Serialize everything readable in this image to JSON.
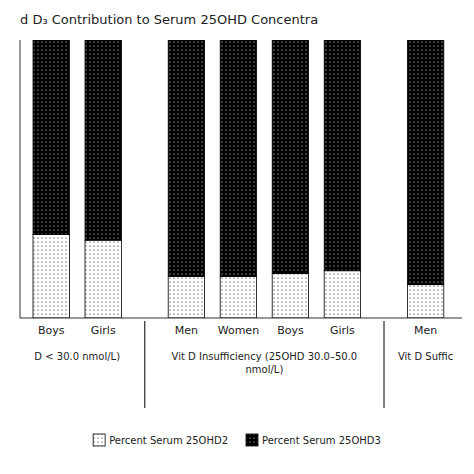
{
  "chart_data": {
    "type": "bar",
    "stacked": true,
    "title": "d D₃ Contribution to Serum 25OHD Concentra",
    "categories": [
      "Boys",
      "Girls",
      "Men",
      "Women",
      "Boys",
      "Girls",
      "Men"
    ],
    "series": [
      {
        "name": "Percent Serum 25OHD2",
        "color": "#ffffff",
        "values": [
          30,
          28,
          15,
          15,
          16,
          17,
          12
        ]
      },
      {
        "name": "Percent Serum 25OHD3",
        "color": "#000000",
        "values": [
          70,
          72,
          85,
          85,
          84,
          83,
          88
        ]
      }
    ],
    "annotations": [
      "D < 30.0 nmol/L)",
      "Vit D Insufficiency (25OHD 30.0–50.0\nnmol/L)",
      "Vit D Suffic"
    ],
    "ylim": [
      0,
      100
    ],
    "yticks": [],
    "tick_labels": "x",
    "grid": false,
    "legend": "bottom"
  }
}
